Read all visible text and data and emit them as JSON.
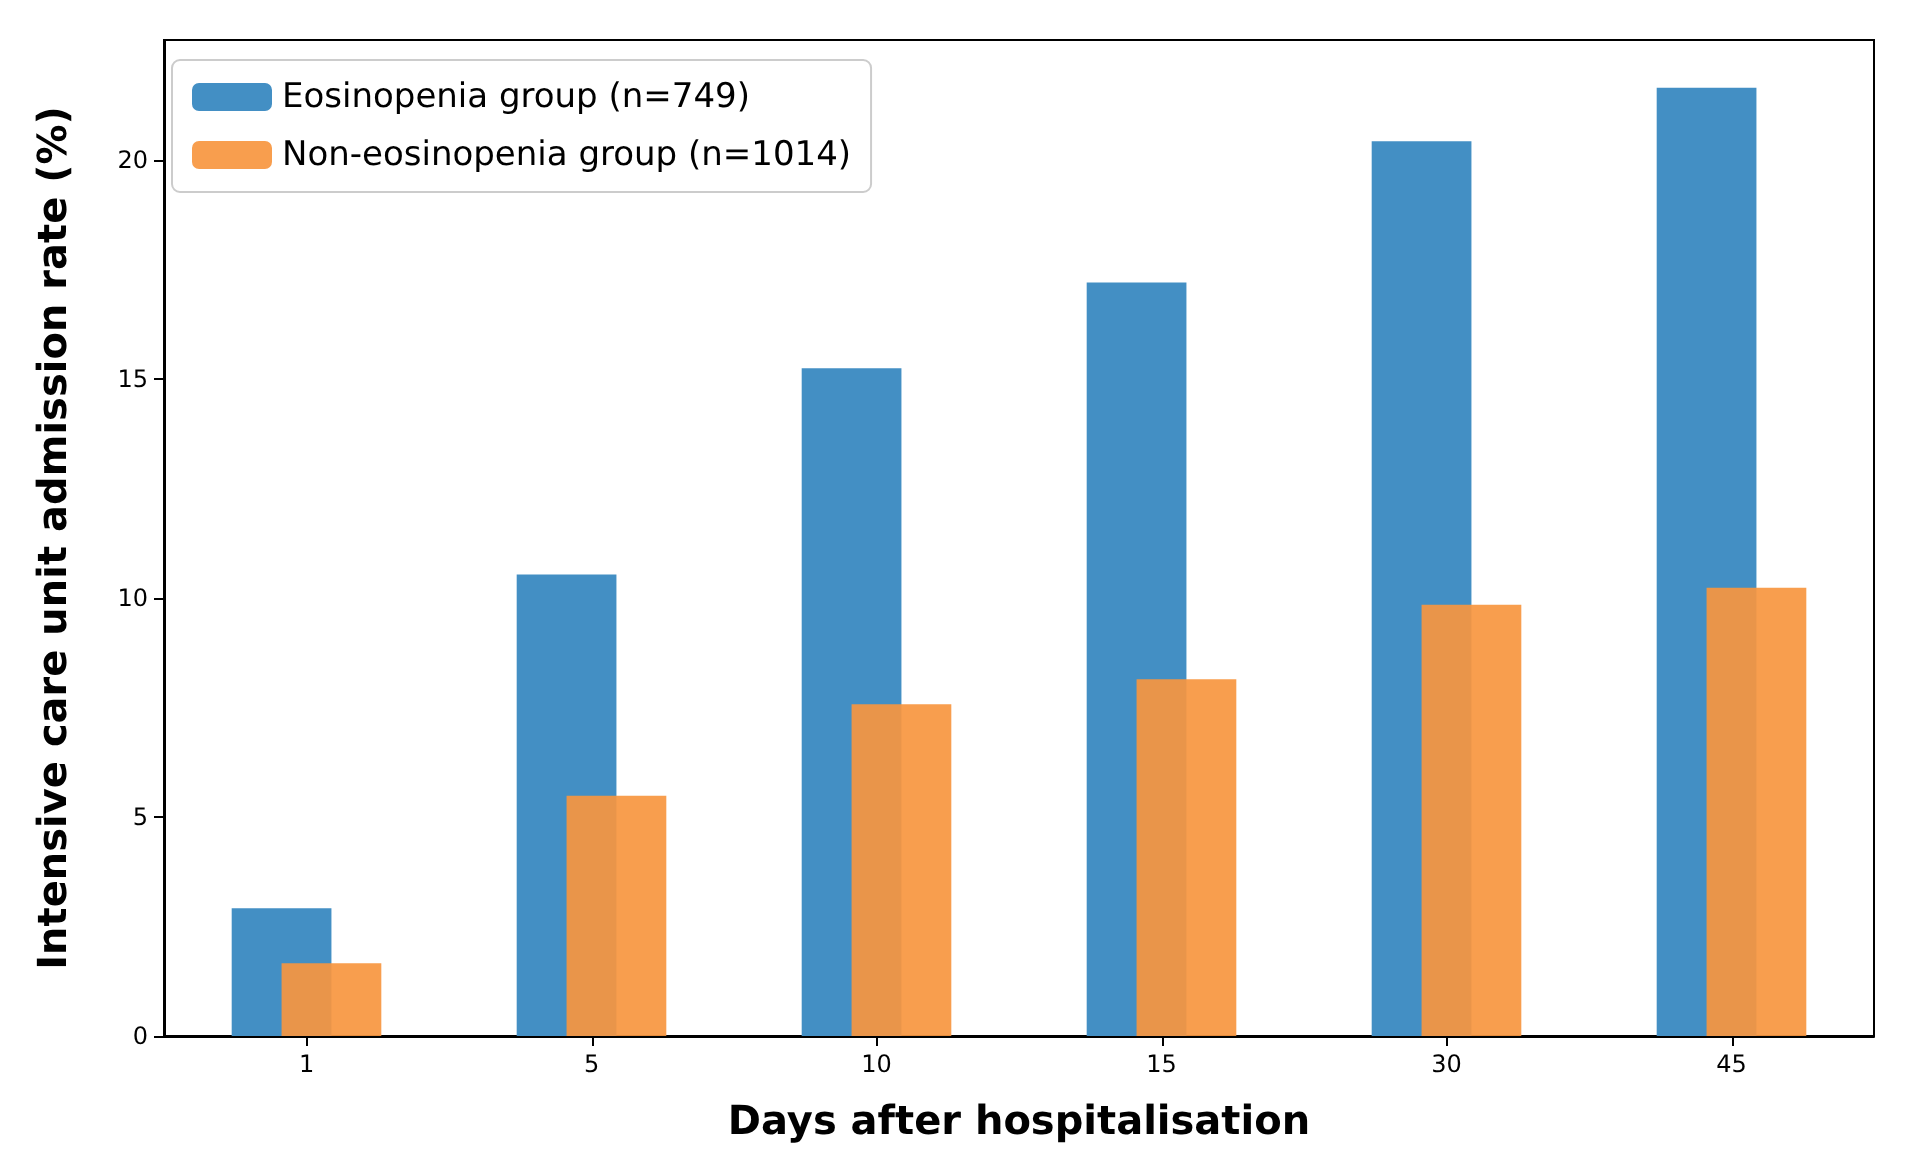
{
  "chart_data": {
    "type": "bar",
    "xlabel": "Days after hospitalisation",
    "ylabel": "Intensive care unit admission rate (%)",
    "categories": [
      "1",
      "5",
      "10",
      "15",
      "30",
      "45"
    ],
    "series": [
      {
        "name": "Eosinopenia group (n=749)",
        "color": "#438fc4",
        "values": [
          2.92,
          10.54,
          15.25,
          17.21,
          20.44,
          21.66
        ]
      },
      {
        "name": "Non-eosinopenia group (n=1014)",
        "color": "#f7963f",
        "values": [
          1.66,
          5.49,
          7.58,
          8.15,
          9.85,
          10.24
        ]
      }
    ],
    "ylim": [
      0,
      22.75
    ],
    "yticks": [
      0,
      5,
      10,
      15,
      20
    ],
    "grid": false,
    "legend": "top left"
  }
}
